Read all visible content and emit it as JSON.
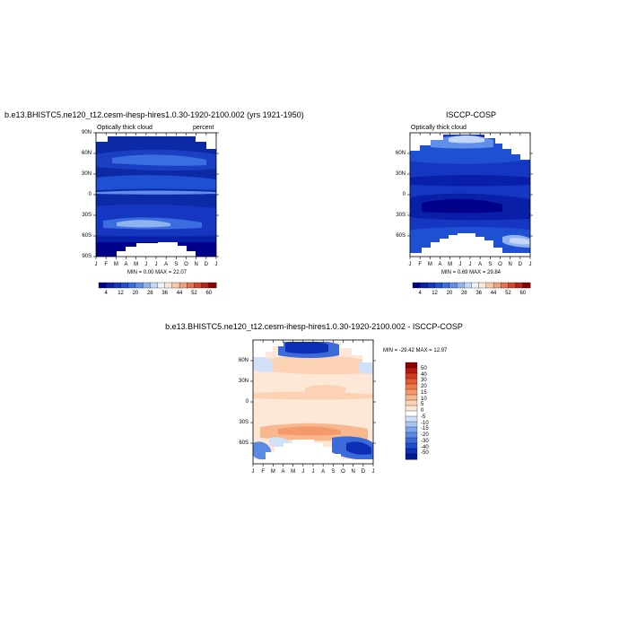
{
  "chart_data": [
    {
      "type": "heatmap",
      "title": "b.e13.BHISTC5.ne120_t12.cesm-ihesp-hires1.0.30-1920-2100.002 (yrs 1921-1950)",
      "left_label": "Optically thick cloud",
      "right_label": "percent",
      "x_tick_labels": [
        "J",
        "F",
        "M",
        "A",
        "M",
        "J",
        "J",
        "A",
        "S",
        "O",
        "N",
        "D",
        "J"
      ],
      "y_tick_labels": [
        "90N",
        "60N",
        "30N",
        "0",
        "30S",
        "60S",
        "90S"
      ],
      "stats": "MIN =   0.00 MAX =  22.07",
      "colorbar_labels": [
        "4",
        "12",
        "20",
        "28",
        "36",
        "44",
        "52",
        "60"
      ],
      "colorbar_colors": [
        "#00008b",
        "#0a1fa8",
        "#1436c0",
        "#1f4fd3",
        "#3a6de0",
        "#5f8fe8",
        "#8fb3ef",
        "#c3d6f5",
        "#eef3fb",
        "#fde6d6",
        "#f8c7a8",
        "#f2a07c",
        "#e7724f",
        "#d3462c",
        "#b52319",
        "#8b0000"
      ]
    },
    {
      "type": "heatmap",
      "title": "ISCCP-COSP",
      "left_label": "Optically thick cloud",
      "x_tick_labels": [
        "J",
        "F",
        "M",
        "A",
        "M",
        "J",
        "J",
        "A",
        "S",
        "O",
        "N",
        "D",
        "J"
      ],
      "y_tick_labels": [
        "60N",
        "30N",
        "0",
        "30S",
        "60S"
      ],
      "stats": "MIN =   0.69 MAX =  29.84",
      "colorbar_labels": [
        "4",
        "12",
        "20",
        "28",
        "36",
        "44",
        "52",
        "60"
      ]
    },
    {
      "type": "heatmap",
      "title": "b.e13.BHISTC5.ne120_t12.cesm-ihesp-hires1.0.30-1920-2100.002 - ISCCP-COSP",
      "x_tick_labels": [
        "J",
        "F",
        "M",
        "A",
        "M",
        "J",
        "J",
        "A",
        "S",
        "O",
        "N",
        "D",
        "J"
      ],
      "y_tick_labels": [
        "60N",
        "30N",
        "0",
        "30S",
        "60S"
      ],
      "stats": "MIN = -29.42 MAX =  12.97",
      "colorbar_labels": [
        "50",
        "40",
        "30",
        "20",
        "15",
        "10",
        "5",
        "0",
        "-5",
        "-10",
        "-15",
        "-20",
        "-30",
        "-40",
        "-50"
      ],
      "colorbar_colors": [
        "#8b0000",
        "#b51a10",
        "#d03a1f",
        "#e45a32",
        "#ee7a4a",
        "#f49a6a",
        "#f8b78d",
        "#fbd3b4",
        "#fde7d6",
        "#ffffff",
        "#cfe0f7",
        "#a7c5f1",
        "#7da7ea",
        "#5a8ae3",
        "#3b6ad9",
        "#1f4ccc",
        "#0d2fb5",
        "#001b8f"
      ]
    }
  ]
}
